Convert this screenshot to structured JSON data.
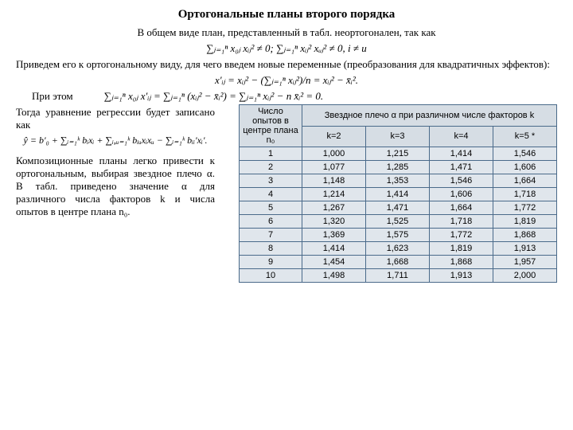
{
  "title": "Ортогональные планы второго порядка",
  "intro": "В общем виде план, представленный в табл. неортогонален, так как",
  "formula1": "∑ⱼ₌₁ⁿ x₀ⱼ xᵢⱼ² ≠ 0;  ∑ⱼ₌₁ⁿ xᵢⱼ² xᵤⱼ² ≠ 0,  i ≠ u",
  "para2": "Приведем его к ортогональному виду, для чего введем новые переменные (преобразования для квадратичных эффектов):",
  "formula2": "x′ᵢⱼ = xᵢⱼ² − (∑ⱼ₌₁ⁿ xᵢⱼ²)/n = xᵢⱼ² − x̄ᵢ².",
  "para3": "При этом",
  "formula3": "∑ⱼ₌₁ⁿ x₀ⱼ x′ᵢⱼ = ∑ⱼ₌₁ⁿ (xᵢⱼ² − x̄ᵢ²) = ∑ⱼ₌₁ⁿ xᵢⱼ² − n x̄ᵢ² = 0.",
  "para4": "Тогда уравнение регрессии будет записано как",
  "formula4": "ŷ = b′₀ + ∑ᵢ₌₁ᵏ bᵢxᵢ + ∑ᵢ,ᵤ₌₁ᵏ bᵢᵤxᵢxᵤ − ∑ᵢ₌₁ᵏ bᵢᵢ′xᵢ′.",
  "para5": "Композиционные планы легко привести к ортогональным, выбирая звездное плечо α. В табл. приведено значение α для различного числа факторов k и числа опытов в центре плана n₀.",
  "table": {
    "header_left": "Число опытов в центре плана n₀",
    "header_top": "Звездное плечо α при различном числе факторов k",
    "columns": [
      "k=2",
      "k=3",
      "k=4",
      "k=5 *"
    ],
    "rows": [
      [
        "1",
        "1,000",
        "1,215",
        "1,414",
        "1,546"
      ],
      [
        "2",
        "1,077",
        "1,285",
        "1,471",
        "1,606"
      ],
      [
        "3",
        "1,148",
        "1,353",
        "1,546",
        "1,664"
      ],
      [
        "4",
        "1,214",
        "1,414",
        "1,606",
        "1,718"
      ],
      [
        "5",
        "1,267",
        "1,471",
        "1,664",
        "1,772"
      ],
      [
        "6",
        "1,320",
        "1,525",
        "1,718",
        "1,819"
      ],
      [
        "7",
        "1,369",
        "1,575",
        "1,772",
        "1,868"
      ],
      [
        "8",
        "1,414",
        "1,623",
        "1,819",
        "1,913"
      ],
      [
        "9",
        "1,454",
        "1,668",
        "1,868",
        "1,957"
      ],
      [
        "10",
        "1,498",
        "1,711",
        "1,913",
        "2,000"
      ]
    ]
  },
  "styling": {
    "title_fontsize": 15,
    "body_fontsize": 13,
    "table_fontsize": 11,
    "table_border_color": "#4a6a8a",
    "table_cell_bg": "#e0e6ec",
    "table_header_bg": "#d6dde4",
    "font_body": "Times New Roman",
    "font_table": "Arial"
  }
}
